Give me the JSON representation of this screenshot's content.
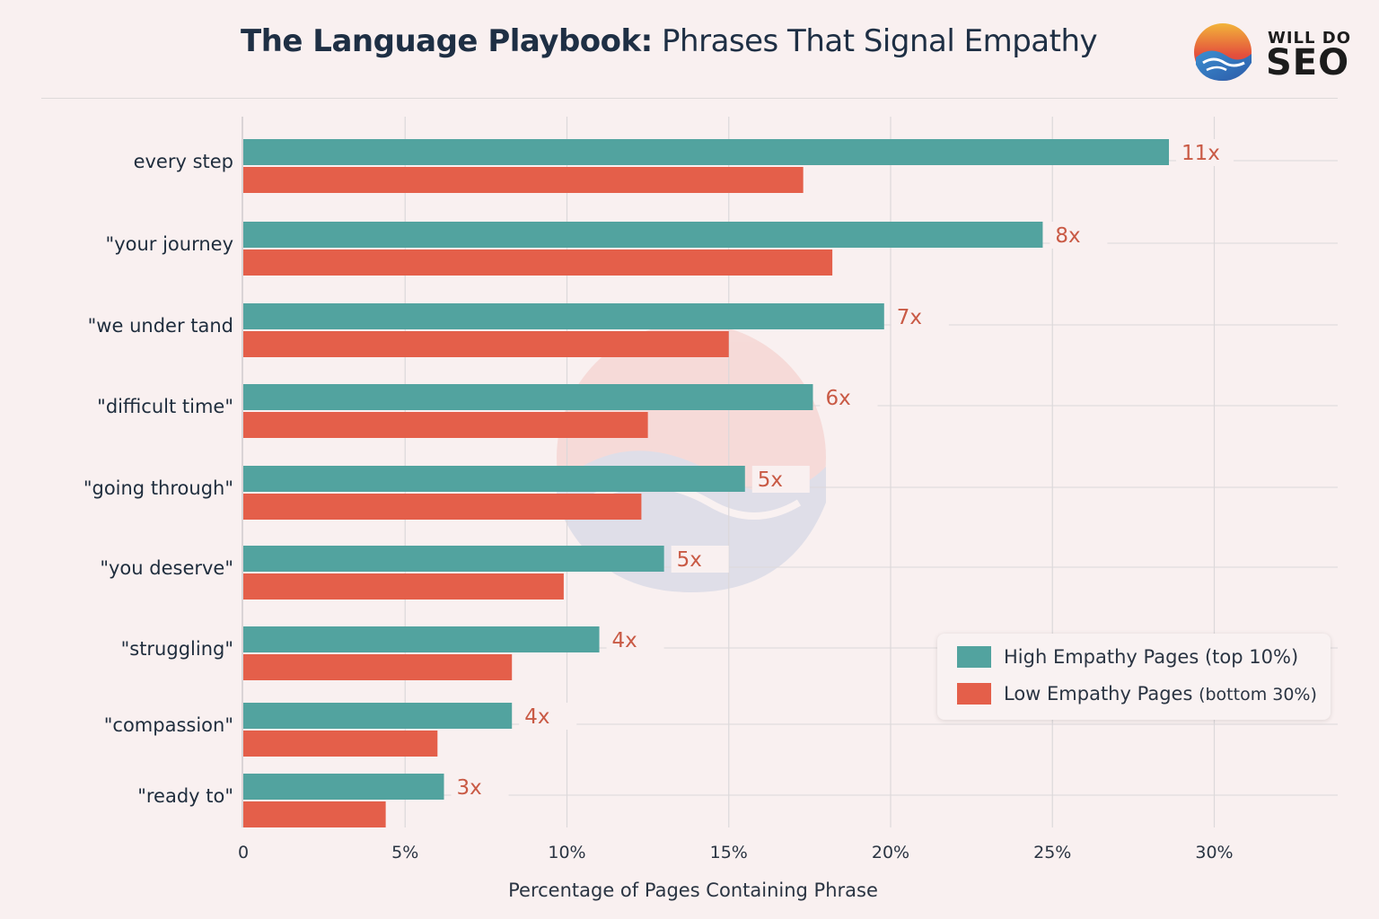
{
  "header": {
    "title_bold": "The Language Playbook:",
    "title_rest": " Phrases That Signal Empathy"
  },
  "logo": {
    "line1": "WILL DO",
    "line2": "SEO"
  },
  "colors": {
    "high": "#52a39f",
    "low": "#e45f4a",
    "multiplier_text": "#c95a45",
    "grid": "#dcd8da"
  },
  "legend": {
    "high_label": "High Empathy Pages",
    "high_note": "(top 10%)",
    "low_label": "Low Empathy Pages",
    "low_note": "(bottom 30%)"
  },
  "chart_data": {
    "type": "bar",
    "orientation": "horizontal",
    "title": "The Language Playbook: Phrases That Signal Empathy",
    "xlabel": "Percentage of Pages Containing Phrase",
    "ylabel": "",
    "xlim": [
      0,
      35
    ],
    "x_ticks": [
      {
        "value": 0,
        "label": "0"
      },
      {
        "value": 5,
        "label": "5%"
      },
      {
        "value": 10,
        "label": "10%"
      },
      {
        "value": 15,
        "label": "15%"
      },
      {
        "value": 20,
        "label": "20%"
      },
      {
        "value": 25,
        "label": "25%"
      },
      {
        "value": 30,
        "label": "30%"
      }
    ],
    "grid": true,
    "legend_position": "bottom-right",
    "categories": [
      "every step",
      "\"your journey",
      "\"we under tand",
      "\"difficult time\"",
      "\"going through\"",
      "\"you deserve\"",
      "\"struggling\"",
      "\"compassion\"",
      "\"ready to\""
    ],
    "series": [
      {
        "name": "High Empathy Pages (top 10%)",
        "values": [
          28.6,
          24.7,
          19.8,
          17.6,
          15.5,
          13.0,
          11.0,
          8.3,
          6.2
        ]
      },
      {
        "name": "Low Empathy Pages (bottom 30%)",
        "values": [
          17.3,
          18.2,
          15.0,
          12.5,
          12.3,
          9.9,
          8.3,
          6.0,
          4.4
        ]
      }
    ],
    "annotations": [
      "11x",
      "8x",
      "7x",
      "6x",
      "5x",
      "5x",
      "4x",
      "4x",
      "3x"
    ]
  }
}
